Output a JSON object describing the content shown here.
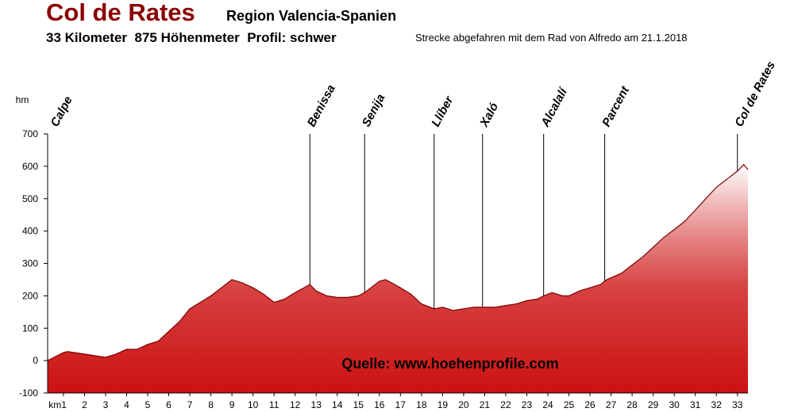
{
  "chart_data": {
    "type": "area",
    "title": "Col de Rates",
    "region": "Region Valencia-Spanien",
    "subtitle": "33 Kilometer  875 Höhenmeter  Profil: schwer",
    "note": "Strecke abgefahren mit dem Rad von Alfredo am 21.1.2018",
    "source": "Quelle: www.hoehenprofile.com",
    "y_label": "hm",
    "color": "#cc1111",
    "x": [
      0.25,
      1,
      1.2,
      2,
      2.5,
      3,
      3.5,
      4,
      4.5,
      5,
      5.5,
      6,
      6.5,
      7,
      7.5,
      8,
      8.5,
      9,
      9.5,
      10,
      10.5,
      11,
      11.5,
      12,
      12.7,
      13,
      13.5,
      14,
      14.5,
      15,
      15.3,
      15.5,
      16,
      16.3,
      17,
      17.5,
      18,
      18.6,
      19,
      19.5,
      20,
      20.5,
      21,
      21.5,
      22,
      22.5,
      23,
      23.5,
      23.8,
      24.2,
      24.7,
      25,
      25.5,
      26,
      26.5,
      26.8,
      27.5,
      28,
      28.5,
      29,
      29.5,
      30,
      30.5,
      31,
      31.5,
      32,
      32.5,
      33,
      33.3,
      33.5
    ],
    "values": [
      0,
      25,
      28,
      20,
      15,
      10,
      20,
      35,
      35,
      50,
      60,
      90,
      120,
      160,
      180,
      200,
      225,
      250,
      240,
      225,
      205,
      180,
      190,
      210,
      235,
      215,
      200,
      195,
      195,
      200,
      210,
      220,
      245,
      250,
      225,
      205,
      175,
      160,
      165,
      155,
      160,
      165,
      165,
      165,
      170,
      175,
      185,
      190,
      200,
      210,
      200,
      200,
      215,
      225,
      235,
      250,
      270,
      295,
      320,
      350,
      380,
      405,
      430,
      465,
      500,
      535,
      560,
      585,
      605,
      590
    ],
    "places": [
      {
        "name": "Calpe",
        "km": 0.25
      },
      {
        "name": "Benissa",
        "km": 12.7
      },
      {
        "name": "Senija",
        "km": 15.3
      },
      {
        "name": "Llíber",
        "km": 18.6
      },
      {
        "name": "Xaló",
        "km": 20.9
      },
      {
        "name": "Alcalalí",
        "km": 23.8
      },
      {
        "name": "Parcent",
        "km": 26.7
      },
      {
        "name": "Col de Rates",
        "km": 33.0
      }
    ],
    "xlim": [
      0.25,
      33.5
    ],
    "ylim": [
      -100,
      700
    ],
    "yticks": [
      -100,
      0,
      100,
      200,
      300,
      400,
      500,
      600,
      700
    ],
    "xticks": [
      {
        "value": 1,
        "label": "km1"
      },
      2,
      3,
      4,
      5,
      6,
      7,
      8,
      9,
      10,
      11,
      12,
      13,
      14,
      15,
      16,
      17,
      18,
      19,
      20,
      21,
      22,
      23,
      24,
      25,
      26,
      27,
      28,
      29,
      30,
      31,
      32,
      33
    ]
  }
}
